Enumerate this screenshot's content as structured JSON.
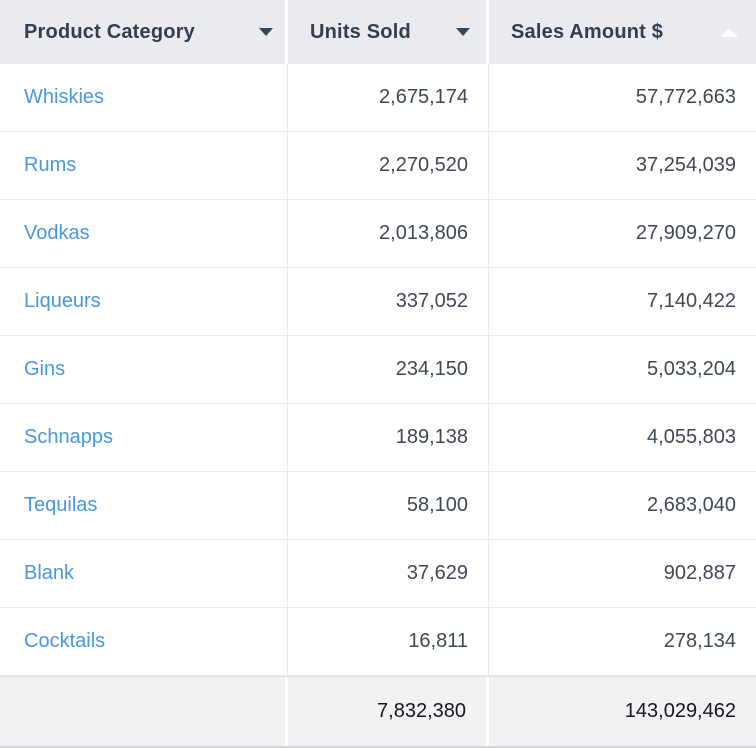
{
  "colors": {
    "header_bg": "#eaebee",
    "header_text": "#32404e",
    "caret": "#33475b",
    "link_blue": "#4a97e0",
    "number_text": "#404854",
    "total_bg": "#f2f2f4",
    "total_text": "#16181c",
    "row_border": "#e9eaed",
    "col_border": "#e7e8eb"
  },
  "table": {
    "header": {
      "product_category": "Product Category",
      "units_sold": "Units Sold",
      "sales_amount": "Sales Amount $"
    },
    "icons": {
      "product_category_sort": "caret-down",
      "units_sold_sort": "caret-down",
      "sales_amount_sort": "caret-up-white"
    },
    "rows": [
      {
        "category": "Whiskies",
        "units_sold": "2,675,174",
        "sales_amount": "57,772,663"
      },
      {
        "category": "Rums",
        "units_sold": "2,270,520",
        "sales_amount": "37,254,039"
      },
      {
        "category": "Vodkas",
        "units_sold": "2,013,806",
        "sales_amount": "27,909,270"
      },
      {
        "category": "Liqueurs",
        "units_sold": "337,052",
        "sales_amount": "7,140,422"
      },
      {
        "category": "Gins",
        "units_sold": "234,150",
        "sales_amount": "5,033,204"
      },
      {
        "category": "Schnapps",
        "units_sold": "189,138",
        "sales_amount": "4,055,803"
      },
      {
        "category": "Tequilas",
        "units_sold": "58,100",
        "sales_amount": "2,683,040"
      },
      {
        "category": "Blank",
        "units_sold": "37,629",
        "sales_amount": "902,887"
      },
      {
        "category": "Cocktails",
        "units_sold": "16,811",
        "sales_amount": "278,134"
      }
    ],
    "totals": {
      "units_sold": "7,832,380",
      "sales_amount": "143,029,462"
    }
  },
  "chart_data": {
    "type": "table",
    "title": "",
    "columns": [
      "Product Category",
      "Units Sold",
      "Sales Amount $"
    ],
    "rows": [
      [
        "Whiskies",
        2675174,
        57772663
      ],
      [
        "Rums",
        2270520,
        37254039
      ],
      [
        "Vodkas",
        2013806,
        27909270
      ],
      [
        "Liqueurs",
        337052,
        7140422
      ],
      [
        "Gins",
        234150,
        5033204
      ],
      [
        "Schnapps",
        189138,
        4055803
      ],
      [
        "Tequilas",
        58100,
        2683040
      ],
      [
        "Blank",
        37629,
        902887
      ],
      [
        "Cocktails",
        16811,
        278134
      ]
    ],
    "totals_row": [
      "",
      7832380,
      143029462
    ],
    "sort_indicator": {
      "column": "Sales Amount $",
      "icon_direction": "up"
    }
  }
}
